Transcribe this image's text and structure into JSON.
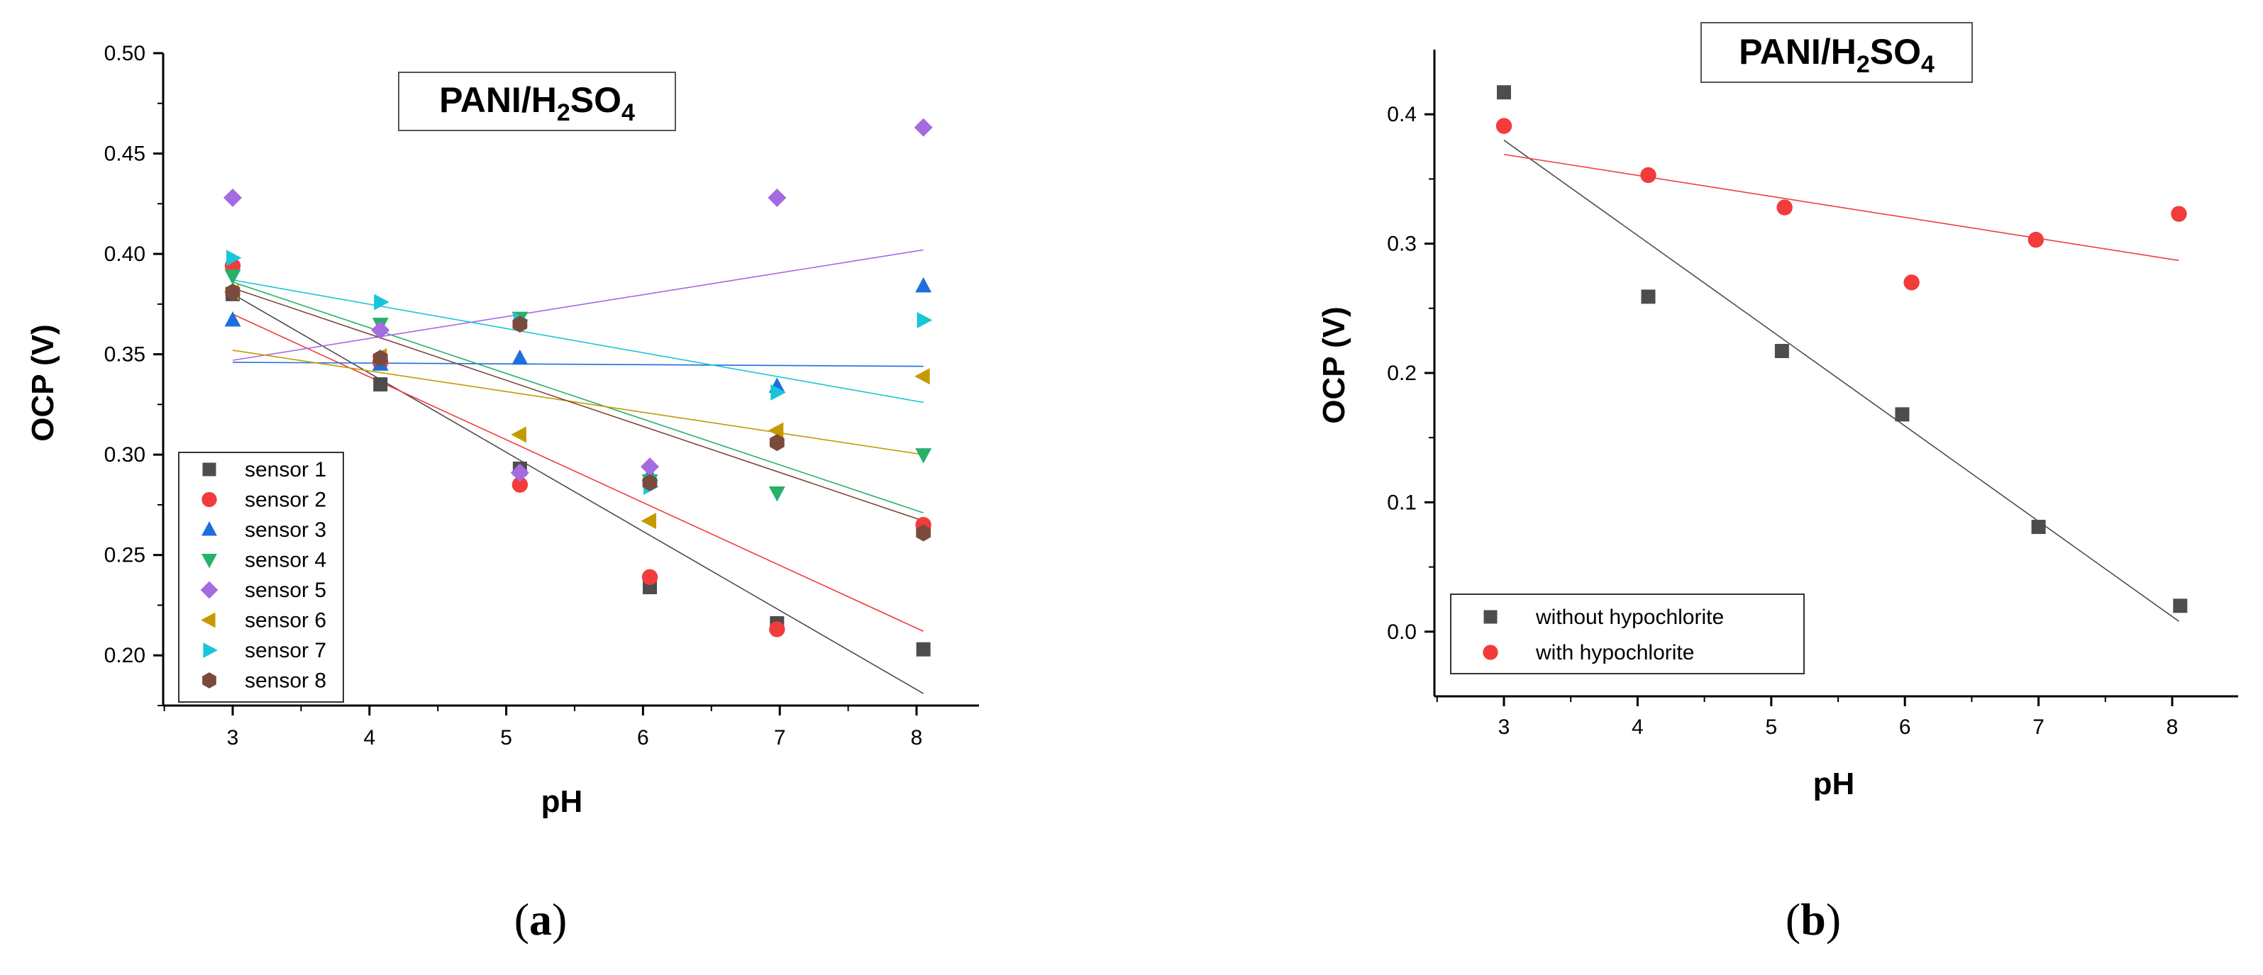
{
  "chart_data": [
    {
      "type": "scatter",
      "title": "PANI/H2SO4",
      "title_parts": {
        "p1": "PANI/H",
        "p2": "2",
        "p3": "SO",
        "p4": "4"
      },
      "xlabel": "pH",
      "ylabel": "OCP (V)",
      "xlim": [
        2.5,
        8.5
      ],
      "ylim": [
        0.175,
        0.5
      ],
      "xticks": [
        3,
        4,
        5,
        6,
        7,
        8
      ],
      "yticks": [
        0.2,
        0.25,
        0.3,
        0.35,
        0.4,
        0.45,
        0.5
      ],
      "ytick_labels": [
        "0.20",
        "0.25",
        "0.30",
        "0.35",
        "0.40",
        "0.45",
        "0.50"
      ],
      "legend_position": "bottom-left",
      "caption": "(a)",
      "caption_parts": {
        "open": "(",
        "letter": "a",
        "close": ")"
      },
      "series": [
        {
          "name": "sensor 1",
          "color": "#4d4d4d",
          "marker": "square",
          "x": [
            3.0,
            4.08,
            5.1,
            6.05,
            6.98,
            8.05
          ],
          "y": [
            0.38,
            0.335,
            0.293,
            0.234,
            0.216,
            0.203
          ],
          "fit": [
            [
              3.0,
              0.38
            ],
            [
              8.05,
              0.181
            ]
          ]
        },
        {
          "name": "sensor 2",
          "color": "#f23c3c",
          "marker": "circle",
          "x": [
            3.0,
            4.08,
            5.1,
            6.05,
            6.98,
            8.05
          ],
          "y": [
            0.394,
            0.346,
            0.285,
            0.239,
            0.213,
            0.265
          ],
          "fit": [
            [
              3.0,
              0.37
            ],
            [
              8.05,
              0.212
            ]
          ]
        },
        {
          "name": "sensor 3",
          "color": "#1e6fdc",
          "marker": "triangle-up",
          "x": [
            3.0,
            4.08,
            5.1,
            6.05,
            6.98,
            8.05
          ],
          "y": [
            0.367,
            0.345,
            0.348,
            0.29,
            0.334,
            0.384
          ],
          "fit": [
            [
              3.0,
              0.346
            ],
            [
              8.05,
              0.344
            ]
          ]
        },
        {
          "name": "sensor 4",
          "color": "#28b06a",
          "marker": "triangle-down",
          "x": [
            3.0,
            4.08,
            5.1,
            6.05,
            6.98,
            8.05
          ],
          "y": [
            0.389,
            0.365,
            0.368,
            0.287,
            0.281,
            0.3
          ],
          "fit": [
            [
              3.0,
              0.386
            ],
            [
              8.05,
              0.271
            ]
          ]
        },
        {
          "name": "sensor 5",
          "color": "#a56be0",
          "marker": "diamond",
          "x": [
            3.0,
            4.08,
            5.1,
            6.05,
            6.98,
            8.05
          ],
          "y": [
            0.428,
            0.362,
            0.291,
            0.294,
            0.428,
            0.463
          ],
          "fit": [
            [
              3.0,
              0.347
            ],
            [
              8.05,
              0.402
            ]
          ]
        },
        {
          "name": "sensor 6",
          "color": "#c49a00",
          "marker": "triangle-left",
          "x": [
            3.0,
            4.08,
            5.1,
            6.05,
            6.98,
            8.05
          ],
          "y": [
            0.381,
            0.349,
            0.31,
            0.267,
            0.312,
            0.339
          ],
          "fit": [
            [
              3.0,
              0.352
            ],
            [
              8.05,
              0.3
            ]
          ]
        },
        {
          "name": "sensor 7",
          "color": "#19c6d9",
          "marker": "triangle-right",
          "x": [
            3.0,
            4.08,
            5.1,
            6.05,
            6.98,
            8.05
          ],
          "y": [
            0.398,
            0.376,
            0.367,
            0.284,
            0.331,
            0.367
          ],
          "fit": [
            [
              3.0,
              0.387
            ],
            [
              8.05,
              0.326
            ]
          ]
        },
        {
          "name": "sensor 8",
          "color": "#7a4b3d",
          "marker": "hexagon",
          "x": [
            3.0,
            4.08,
            5.1,
            6.05,
            6.98,
            8.05
          ],
          "y": [
            0.381,
            0.348,
            0.365,
            0.286,
            0.306,
            0.261
          ],
          "fit": [
            [
              3.0,
              0.383
            ],
            [
              8.05,
              0.267
            ]
          ]
        }
      ]
    },
    {
      "type": "scatter",
      "title": "PANI/H2SO4",
      "title_parts": {
        "p1": "PANI/H",
        "p2": "2",
        "p3": "SO",
        "p4": "4"
      },
      "xlabel": "pH",
      "ylabel": "OCP (V)",
      "xlim": [
        2.5,
        8.5
      ],
      "ylim": [
        -0.05,
        0.45
      ],
      "xticks": [
        3,
        4,
        5,
        6,
        7,
        8
      ],
      "yticks": [
        0.0,
        0.1,
        0.2,
        0.3,
        0.4
      ],
      "ytick_labels": [
        "0.0",
        "0.1",
        "0.2",
        "0.3",
        "0.4"
      ],
      "legend_position": "bottom-left",
      "caption": "(b)",
      "caption_parts": {
        "open": "(",
        "letter": "b",
        "close": ")"
      },
      "series": [
        {
          "name": "without hypochlorite",
          "color": "#4d4d4d",
          "marker": "square",
          "x": [
            3.0,
            4.08,
            5.08,
            5.98,
            7.0,
            8.06
          ],
          "y": [
            0.417,
            0.259,
            0.217,
            0.168,
            0.081,
            0.02
          ],
          "fit": [
            [
              3.0,
              0.38
            ],
            [
              8.05,
              0.008
            ]
          ]
        },
        {
          "name": "with hypochlorite",
          "color": "#f23c3c",
          "marker": "circle",
          "x": [
            3.0,
            4.08,
            5.1,
            6.05,
            6.98,
            8.05
          ],
          "y": [
            0.391,
            0.353,
            0.328,
            0.27,
            0.303,
            0.323
          ],
          "fit": [
            [
              3.0,
              0.369
            ],
            [
              8.05,
              0.287
            ]
          ]
        }
      ]
    }
  ]
}
